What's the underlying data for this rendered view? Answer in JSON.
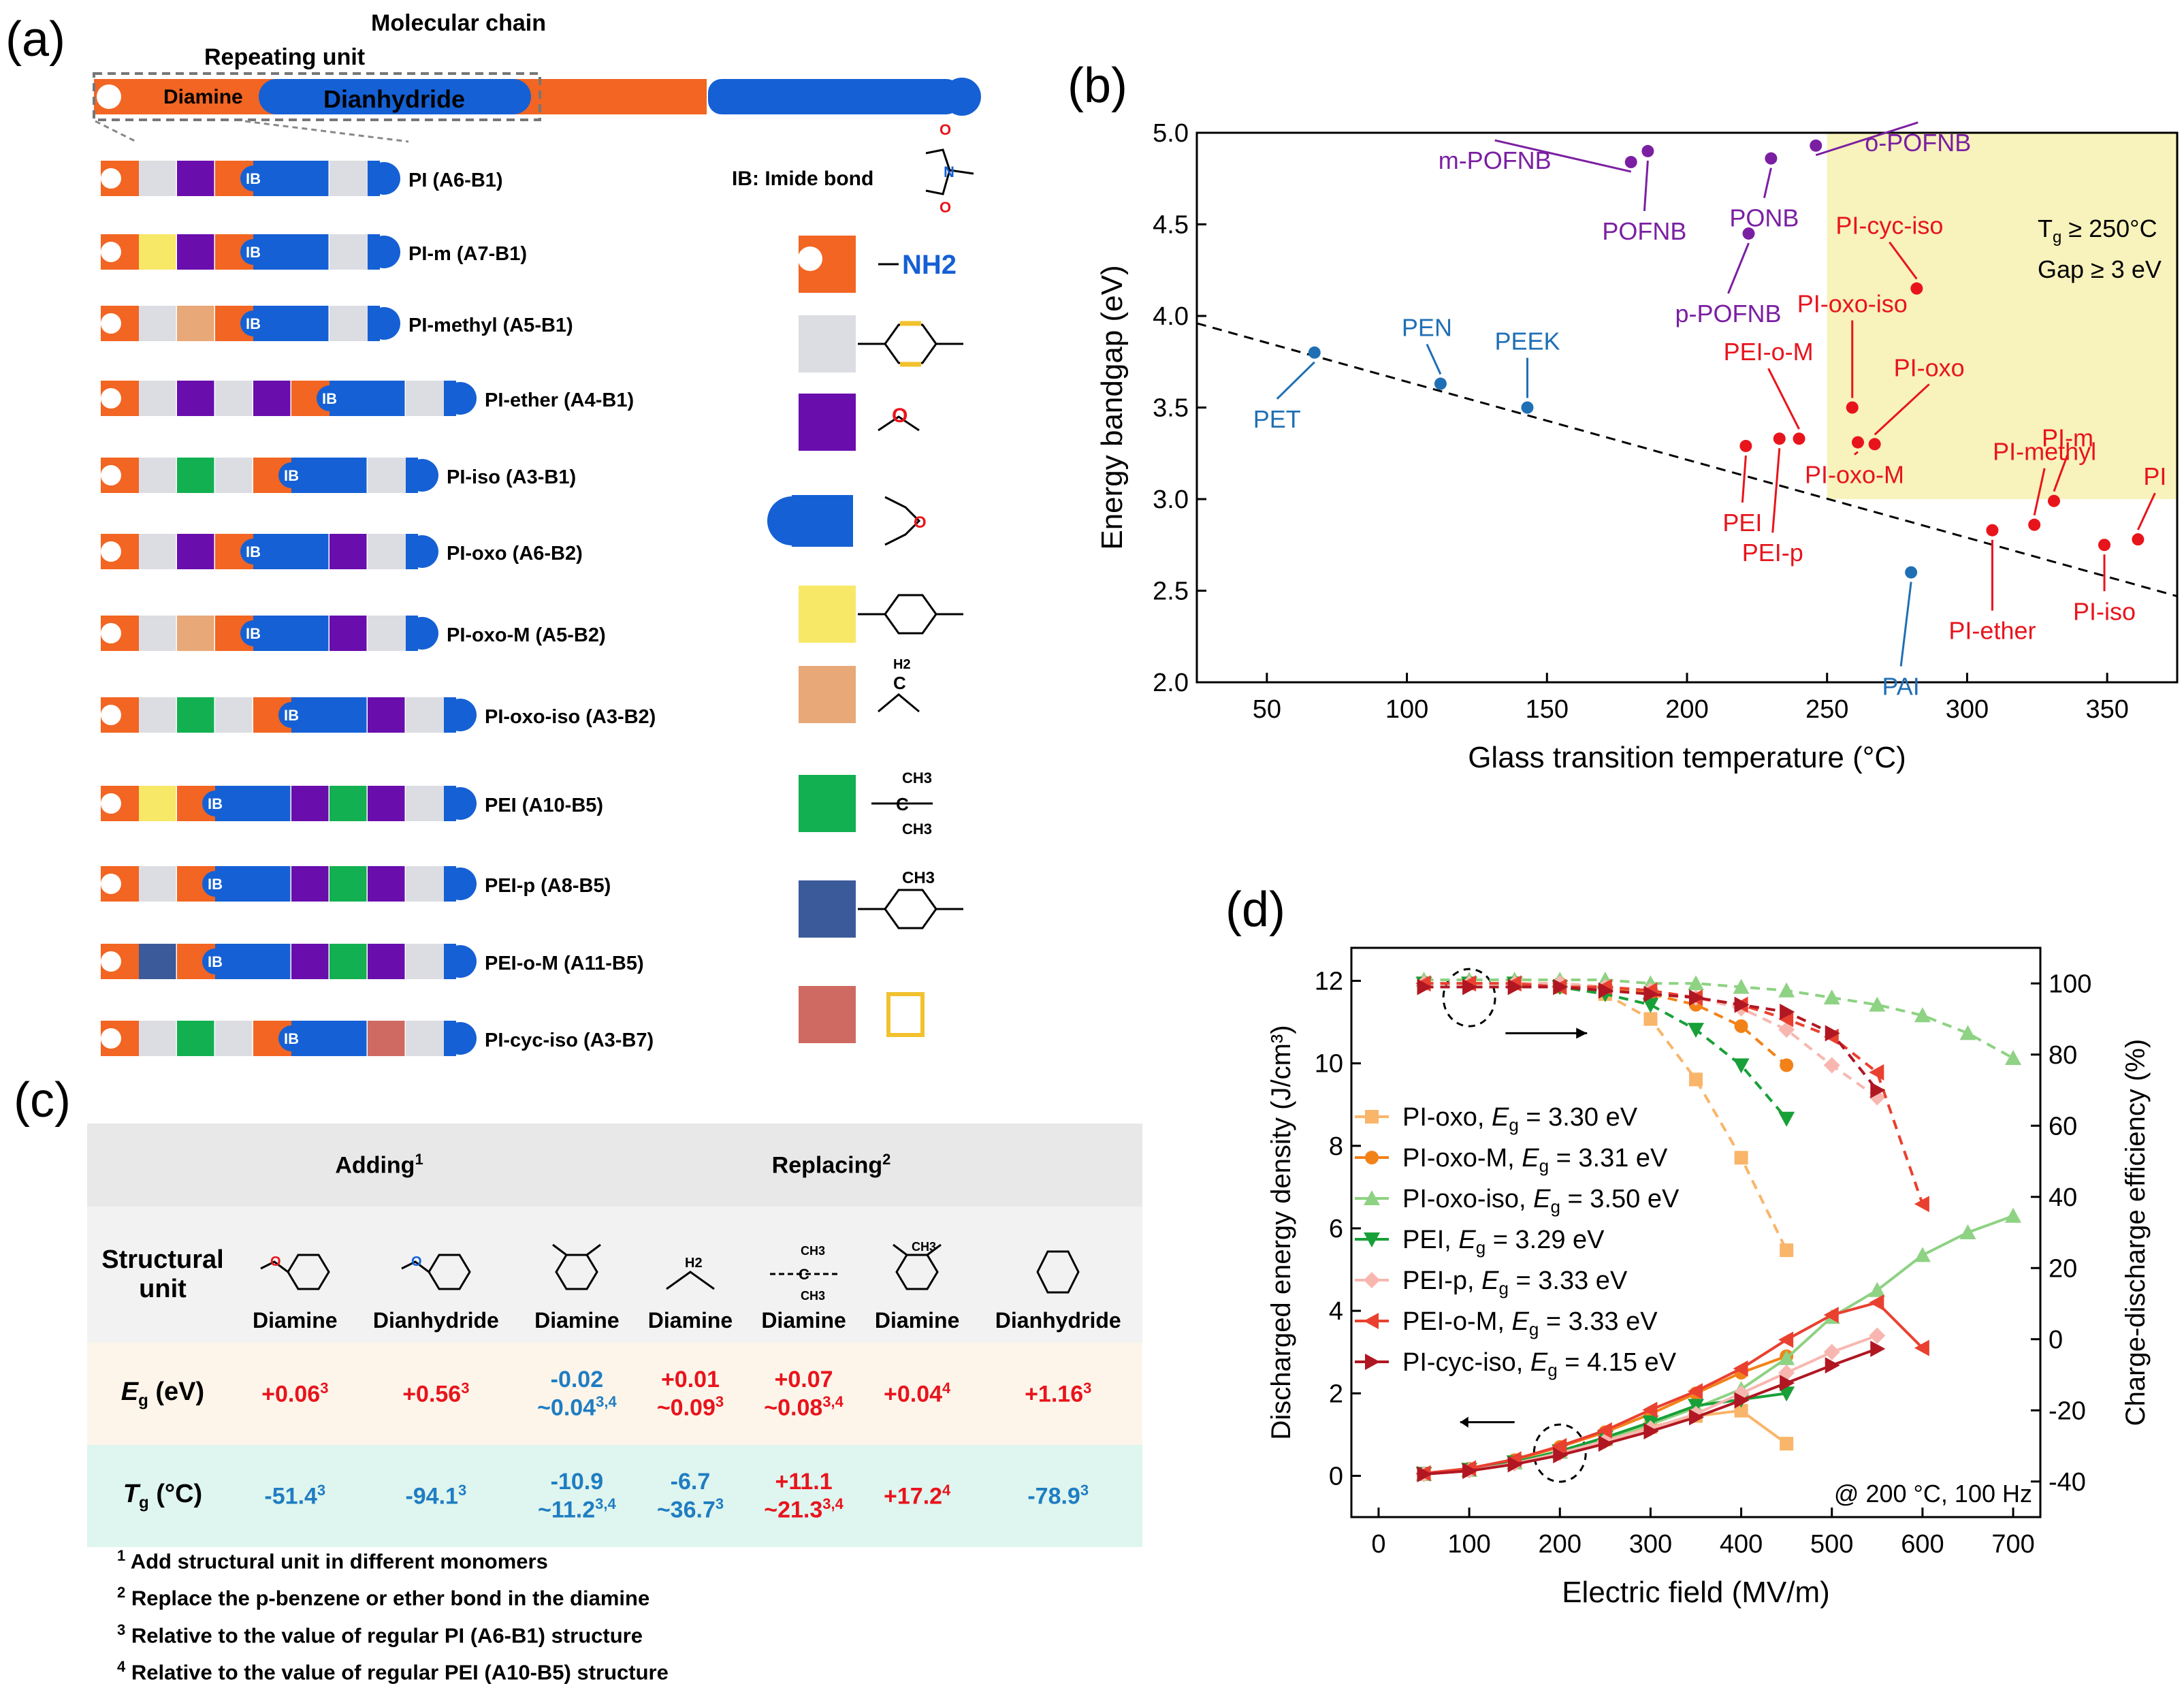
{
  "panel_labels": {
    "a": "(a)",
    "b": "(b)",
    "c": "(c)",
    "d": "(d)"
  },
  "panel_a": {
    "chain_title": "Molecular chain",
    "repeat_label": "Repeating unit",
    "diamine_label": "Diamine",
    "dianhydride_label": "Dianhydride",
    "ib_label": "IB",
    "ib_legend": "IB: Imide bond",
    "rows": [
      {
        "name": "PI (A6-B1)",
        "cells": [
          "gray",
          "purple",
          "IB",
          "blue",
          "gray"
        ]
      },
      {
        "name": "PI-m (A7-B1)",
        "cells": [
          "yellow",
          "purple",
          "IB",
          "blue",
          "gray"
        ]
      },
      {
        "name": "PI-methyl (A5-B1)",
        "cells": [
          "gray",
          "tan",
          "IB",
          "blue",
          "gray"
        ]
      },
      {
        "name": "PI-ether (A4-B1)",
        "cells": [
          "gray",
          "purple",
          "gray",
          "purple",
          "IB",
          "blue",
          "gray"
        ]
      },
      {
        "name": "PI-iso (A3-B1)",
        "cells": [
          "gray",
          "green",
          "gray",
          "IB",
          "blue",
          "gray"
        ]
      },
      {
        "name": "PI-oxo (A6-B2)",
        "cells": [
          "gray",
          "purple",
          "IB",
          "blue",
          "purple",
          "gray"
        ]
      },
      {
        "name": "PI-oxo-M (A5-B2)",
        "cells": [
          "gray",
          "tan",
          "IB",
          "blue",
          "purple",
          "gray"
        ]
      },
      {
        "name": "PI-oxo-iso (A3-B2)",
        "cells": [
          "gray",
          "green",
          "gray",
          "IB",
          "blue",
          "purple",
          "gray"
        ]
      },
      {
        "name": "PEI (A10-B5)",
        "cells": [
          "yellow",
          "IB",
          "blue",
          "purple",
          "green",
          "purple",
          "gray"
        ]
      },
      {
        "name": "PEI-p (A8-B5)",
        "cells": [
          "gray",
          "IB",
          "blue",
          "purple",
          "green",
          "purple",
          "gray"
        ]
      },
      {
        "name": "PEI-o-M (A11-B5)",
        "cells": [
          "navy",
          "IB",
          "blue",
          "purple",
          "green",
          "purple",
          "gray"
        ]
      },
      {
        "name": "PI-cyc-iso (A3-B7)",
        "cells": [
          "gray",
          "green",
          "gray",
          "IB",
          "blue",
          "rose",
          "gray"
        ]
      }
    ],
    "legend": [
      {
        "color": "#f26522",
        "label": "—NH2",
        "shape": "hook"
      },
      {
        "color": "#dcdde2",
        "label": "p-benzene"
      },
      {
        "color": "#6a0dad",
        "label": "ether O"
      },
      {
        "color": "#1560d4",
        "label": "anhydride",
        "shape": "cap"
      },
      {
        "color": "#f8e868",
        "label": "m-benzene"
      },
      {
        "color": "#e8a878",
        "label": "CH2"
      },
      {
        "color": "#12b050",
        "label": "C(CH3)2"
      },
      {
        "color": "#3b5a9a",
        "label": "methyl benzene"
      },
      {
        "color": "#cf6a62",
        "label": "cyclohexane"
      }
    ],
    "chem": {
      "nh2": "NH2",
      "o": "O",
      "n": "N",
      "h2": "H2",
      "c": "C",
      "ch3": "CH3"
    },
    "colors": {
      "orange": "#f26522",
      "gray": "#dcdde2",
      "purple": "#6a0dad",
      "blue": "#1560d4",
      "yellow": "#f8e868",
      "tan": "#e8a878",
      "green": "#12b050",
      "navy": "#3b5a9a",
      "rose": "#cf6a62"
    }
  },
  "chart_data": [
    {
      "type": "scatter",
      "id": "b",
      "xlabel": "Glass transition temperature (°C)",
      "ylabel": "Energy bandgap (eV)",
      "xlim": [
        25,
        375
      ],
      "ylim": [
        2.0,
        5.0
      ],
      "xticks": [
        50,
        100,
        150,
        200,
        250,
        300,
        350
      ],
      "yticks": [
        2.0,
        2.5,
        3.0,
        3.5,
        4.0,
        4.5,
        5.0
      ],
      "region_text": {
        "line1_pre": "T",
        "line1_sub": "g",
        "line1_post": " ≥ 250°C",
        "line2": "Gap ≥ 3 eV"
      },
      "trend": {
        "x": [
          25,
          375
        ],
        "y": [
          3.96,
          2.47
        ]
      },
      "points": [
        {
          "name": "PET",
          "x": 67,
          "y": 3.8,
          "group": "blue"
        },
        {
          "name": "PEN",
          "x": 112,
          "y": 3.63,
          "group": "blue"
        },
        {
          "name": "PEEK",
          "x": 143,
          "y": 3.5,
          "group": "blue"
        },
        {
          "name": "PAI",
          "x": 280,
          "y": 2.6,
          "group": "blue"
        },
        {
          "name": "m-POFNB",
          "x": 180,
          "y": 4.84,
          "group": "purple"
        },
        {
          "name": "POFNB",
          "x": 186,
          "y": 4.9,
          "group": "purple"
        },
        {
          "name": "p-POFNB",
          "x": 222,
          "y": 4.45,
          "group": "purple"
        },
        {
          "name": "PONB",
          "x": 230,
          "y": 4.86,
          "group": "purple"
        },
        {
          "name": "o-POFNB",
          "x": 246,
          "y": 4.93,
          "group": "purple"
        },
        {
          "name": "PEI",
          "x": 221,
          "y": 3.29,
          "group": "red"
        },
        {
          "name": "PEI-p",
          "x": 233,
          "y": 3.33,
          "group": "red"
        },
        {
          "name": "PEI-o-M",
          "x": 240,
          "y": 3.33,
          "group": "red"
        },
        {
          "name": "PI-oxo-iso",
          "x": 259,
          "y": 3.5,
          "group": "red"
        },
        {
          "name": "PI-oxo-M",
          "x": 261,
          "y": 3.31,
          "group": "red"
        },
        {
          "name": "PI-oxo",
          "x": 267,
          "y": 3.3,
          "group": "red"
        },
        {
          "name": "PI-cyc-iso",
          "x": 282,
          "y": 4.15,
          "group": "red"
        },
        {
          "name": "PI-ether",
          "x": 309,
          "y": 2.83,
          "group": "red"
        },
        {
          "name": "PI-methyl",
          "x": 324,
          "y": 2.86,
          "group": "red"
        },
        {
          "name": "PI-m",
          "x": 331,
          "y": 2.99,
          "group": "red"
        },
        {
          "name": "PI-iso",
          "x": 349,
          "y": 2.75,
          "group": "red"
        },
        {
          "name": "PI",
          "x": 361,
          "y": 2.78,
          "group": "red"
        }
      ]
    },
    {
      "type": "line",
      "id": "d",
      "xlabel": "Electric field (MV/m)",
      "ylabel_left": "Discharged energy density (J/cm³)",
      "ylabel_right": "Charge-discharge efficiency (%)",
      "xlim": [
        -30,
        730
      ],
      "ylim_left": [
        -1,
        12.8
      ],
      "ylim_right": [
        -50,
        110
      ],
      "xticks": [
        0,
        100,
        200,
        300,
        400,
        500,
        600,
        700
      ],
      "yticks_left": [
        0,
        2,
        4,
        6,
        8,
        10,
        12
      ],
      "yticks_right": [
        -40,
        -20,
        0,
        20,
        40,
        60,
        80,
        100
      ],
      "note": "@ 200 °C, 100 Hz",
      "series": [
        {
          "name": "PI-oxo",
          "eg": "3.30 eV",
          "color": "#f9b56a",
          "marker": "square",
          "x": [
            50,
            100,
            150,
            200,
            250,
            300,
            350,
            400,
            450
          ],
          "energy": [
            0.05,
            0.15,
            0.33,
            0.58,
            0.88,
            1.18,
            1.45,
            1.58,
            0.78
          ],
          "efficiency": [
            100,
            100,
            100,
            99,
            97,
            90,
            73,
            51,
            25
          ]
        },
        {
          "name": "PI-oxo-M",
          "eg": "3.31 eV",
          "color": "#f28218",
          "marker": "circle",
          "x": [
            50,
            100,
            150,
            200,
            250,
            300,
            350,
            400,
            450
          ],
          "energy": [
            0.05,
            0.17,
            0.38,
            0.7,
            1.06,
            1.5,
            2.0,
            2.5,
            2.9
          ],
          "efficiency": [
            100,
            100,
            100,
            100,
            99,
            97,
            94,
            88,
            77
          ]
        },
        {
          "name": "PI-oxo-iso",
          "eg": "3.50 eV",
          "color": "#8ed283",
          "marker": "triangle",
          "x": [
            50,
            100,
            150,
            200,
            250,
            300,
            350,
            400,
            450,
            500,
            550,
            600,
            650,
            700
          ],
          "energy": [
            0.04,
            0.14,
            0.32,
            0.58,
            0.9,
            1.25,
            1.65,
            2.1,
            2.85,
            3.85,
            4.5,
            5.35,
            5.9,
            6.3
          ],
          "efficiency": [
            101,
            101,
            101,
            101,
            101,
            100,
            100,
            99,
            98,
            96,
            94,
            91,
            86,
            79
          ]
        },
        {
          "name": "PEI",
          "eg": "3.29 eV",
          "color": "#18a038",
          "marker": "tri-down",
          "x": [
            50,
            100,
            150,
            200,
            250,
            300,
            350,
            400,
            450
          ],
          "energy": [
            0.05,
            0.15,
            0.33,
            0.6,
            0.93,
            1.3,
            1.7,
            1.85,
            2.0
          ],
          "efficiency": [
            100,
            100,
            100,
            99,
            97,
            94,
            87,
            77,
            62
          ]
        },
        {
          "name": "PEI-p",
          "eg": "3.33 eV",
          "color": "#f7b7b0",
          "marker": "diamond",
          "x": [
            50,
            100,
            150,
            200,
            250,
            300,
            350,
            400,
            450,
            500,
            550
          ],
          "energy": [
            0.04,
            0.13,
            0.3,
            0.55,
            0.85,
            1.15,
            1.5,
            2.0,
            2.5,
            3.0,
            3.4
          ],
          "efficiency": [
            100,
            100,
            100,
            100,
            99,
            98,
            96,
            93,
            87,
            77,
            68
          ]
        },
        {
          "name": "PEI-o-M",
          "eg": "3.33 eV",
          "color": "#ea4030",
          "marker": "tri-left",
          "x": [
            50,
            100,
            150,
            200,
            250,
            300,
            350,
            400,
            450,
            500,
            550,
            600
          ],
          "energy": [
            0.06,
            0.18,
            0.4,
            0.72,
            1.1,
            1.6,
            2.05,
            2.6,
            3.3,
            3.9,
            4.2,
            3.1
          ],
          "efficiency": [
            100,
            100,
            100,
            99,
            99,
            98,
            96,
            94,
            90,
            85,
            75,
            38
          ]
        },
        {
          "name": "PI-cyc-iso",
          "eg": "4.15 eV",
          "color": "#b01722",
          "marker": "tri-right",
          "x": [
            50,
            100,
            150,
            200,
            250,
            300,
            350,
            400,
            450,
            500,
            550
          ],
          "energy": [
            0.04,
            0.12,
            0.28,
            0.5,
            0.78,
            1.08,
            1.42,
            1.83,
            2.25,
            2.68,
            3.08
          ],
          "efficiency": [
            99,
            99,
            99,
            99,
            98,
            97,
            96,
            94,
            92,
            86,
            70
          ]
        }
      ]
    }
  ],
  "panel_c": {
    "adding_header": "Adding",
    "adding_sup": "1",
    "replacing_header": "Replacing",
    "replacing_sup": "2",
    "structural_label": "Structural unit",
    "columns": [
      "Diamine",
      "Dianhydride",
      "Diamine",
      "Diamine",
      "Diamine",
      "Diamine",
      "Dianhydride"
    ],
    "eg_label": "E",
    "eg_sub": "g",
    "eg_unit": " (eV)",
    "tg_label": "T",
    "tg_sub": "g",
    "tg_unit": " (°C)",
    "eg_cells": [
      {
        "l1": "+0.06",
        "s1": "3",
        "c": "red"
      },
      {
        "l1": "+0.56",
        "s1": "3",
        "c": "red"
      },
      {
        "l1": "-0.02",
        "l2": "~0.04",
        "s2": "3,4",
        "c": "blue"
      },
      {
        "l1": "+0.01",
        "l2": "~0.09",
        "s2": "3",
        "c": "red"
      },
      {
        "l1": "+0.07",
        "l2": "~0.08",
        "s2": "3,4",
        "c": "red"
      },
      {
        "l1": "+0.04",
        "s1": "4",
        "c": "red"
      },
      {
        "l1": "+1.16",
        "s1": "3",
        "c": "red"
      }
    ],
    "tg_cells": [
      {
        "l1": "-51.4",
        "s1": "3",
        "c": "blue"
      },
      {
        "l1": "-94.1",
        "s1": "3",
        "c": "blue"
      },
      {
        "l1": "-10.9",
        "l2": "~11.2",
        "s2": "3,4",
        "c": "blue"
      },
      {
        "l1": "-6.7",
        "l2": "~36.7",
        "s2": "3",
        "c": "blue"
      },
      {
        "l1": "+11.1",
        "l2": "~21.3",
        "s2": "3,4",
        "c": "red"
      },
      {
        "l1": "+17.2",
        "s1": "4",
        "c": "red"
      },
      {
        "l1": "-78.9",
        "s1": "3",
        "c": "blue"
      }
    ],
    "notes": [
      {
        "n": "1",
        "text": " Add structural unit in different monomers"
      },
      {
        "n": "2",
        "text": " Replace the p-benzene or ether bond in the diamine"
      },
      {
        "n": "3",
        "text": " Relative to the value of  regular PI (A6-B1) structure"
      },
      {
        "n": "4",
        "text": " Relative to the value of  regular PEI (A10-B5) structure"
      }
    ]
  }
}
